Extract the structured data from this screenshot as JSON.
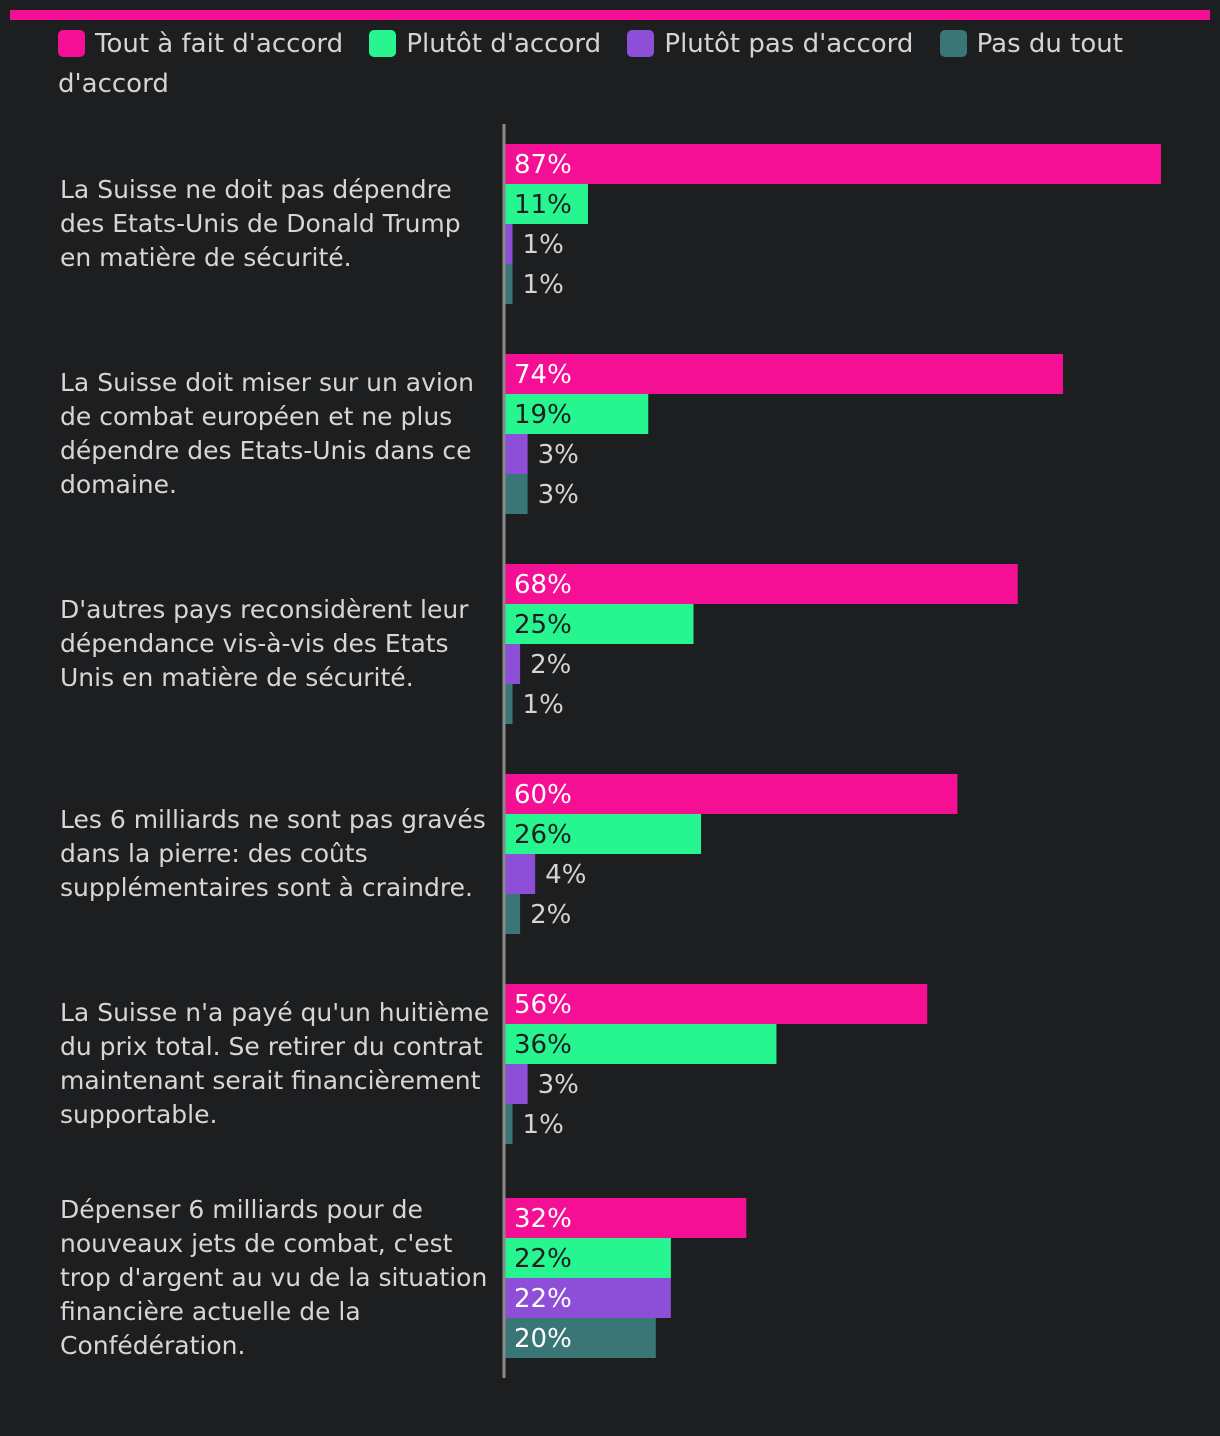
{
  "chart_data": {
    "type": "bar",
    "orientation": "horizontal",
    "title": "",
    "xlabel": "",
    "ylabel": "",
    "xlim": [
      0,
      100
    ],
    "grid": false,
    "legend_position": "top",
    "value_suffix": "%",
    "categories": [
      "La Suisse ne doit pas dépendre des Etats-Unis de Donald Trump en matière de sécurité.",
      "La Suisse doit miser sur un avion de combat européen et ne plus dépendre des Etats-Unis dans ce domaine.",
      "D'autres pays reconsidèrent leur dépendance vis-à-vis des Etats Unis en matière de sécurité.",
      "Les 6 milliards ne sont pas gravés dans la pierre: des coûts supplémentaires sont à craindre.",
      "La Suisse n'a payé qu'un huitième du prix total. Se retirer du contrat maintenant serait financièrement supportable.",
      "Dépenser 6 milliards pour de nouveaux jets de combat, c'est trop d'argent au vu de la situation financière actuelle de la Confédération."
    ],
    "series": [
      {
        "name": "Tout à fait d'accord",
        "color": "#f50f94",
        "values": [
          87,
          74,
          68,
          60,
          56,
          32
        ]
      },
      {
        "name": "Plutôt d'accord",
        "color": "#26f590",
        "values": [
          11,
          19,
          25,
          26,
          36,
          22
        ]
      },
      {
        "name": "Plutôt pas d'accord",
        "color": "#8d4fd8",
        "values": [
          1,
          3,
          2,
          4,
          3,
          22
        ]
      },
      {
        "name": "Pas du tout d'accord",
        "color": "#3b7677",
        "values": [
          1,
          3,
          1,
          2,
          1,
          20
        ]
      }
    ]
  },
  "colors": {
    "background": "#1d1e20",
    "accent": "#f50f94",
    "axis": "#8a8a8a",
    "label_inside_light": "#ffffff",
    "label_inside_dark": "#1d1e20",
    "label_outside": "#d4d4d4"
  }
}
